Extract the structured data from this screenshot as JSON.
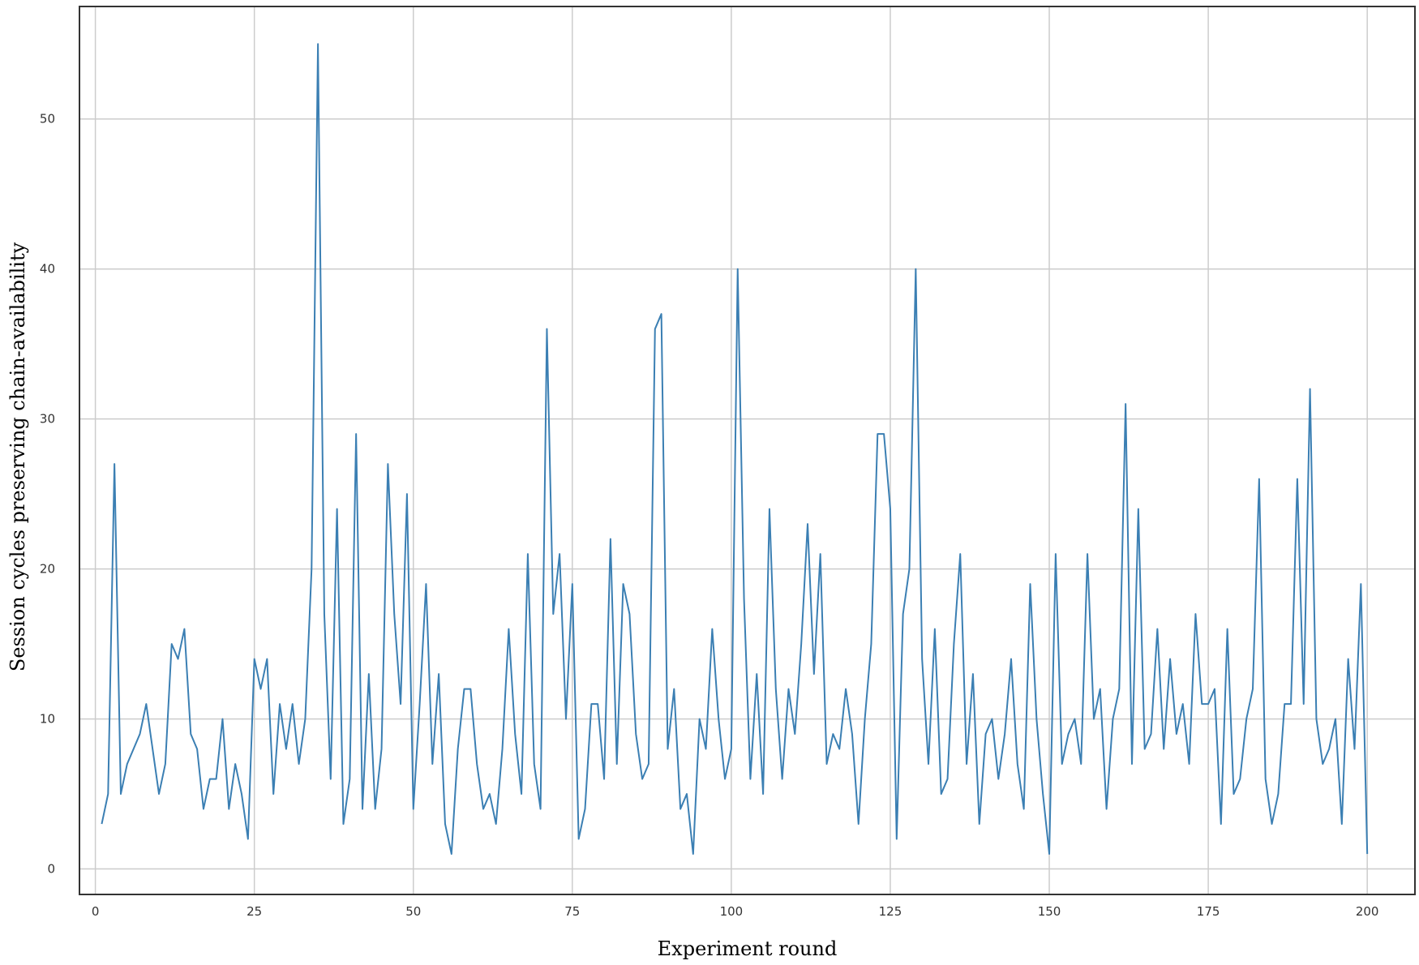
{
  "chart_data": {
    "type": "line",
    "title": "",
    "xlabel": "Experiment round",
    "ylabel": "Session cycles preserving chain-availability",
    "xlim": [
      -2.5,
      207.5
    ],
    "ylim": [
      -1.7,
      57.5
    ],
    "xticks": [
      0,
      25,
      50,
      75,
      100,
      125,
      150,
      175,
      200
    ],
    "yticks": [
      0,
      10,
      20,
      30,
      40,
      50
    ],
    "grid": true,
    "legend": "none",
    "colors": {
      "line": "#3b7fb3",
      "grid": "#cccccc",
      "frame": "#333333"
    },
    "series": [
      {
        "x_start": 1,
        "x_step": 1,
        "values": [
          3,
          5,
          27,
          5,
          7,
          8,
          9,
          11,
          8,
          5,
          7,
          15,
          14,
          16,
          9,
          8,
          4,
          6,
          6,
          10,
          4,
          7,
          5,
          2,
          14,
          12,
          14,
          5,
          11,
          8,
          11,
          7,
          10,
          20,
          55,
          17,
          6,
          24,
          3,
          6,
          29,
          4,
          13,
          4,
          8,
          27,
          17,
          11,
          25,
          4,
          11,
          19,
          7,
          13,
          3,
          1,
          8,
          12,
          12,
          7,
          4,
          5,
          3,
          8,
          16,
          9,
          5,
          21,
          7,
          4,
          36,
          17,
          21,
          10,
          19,
          2,
          4,
          11,
          11,
          6,
          22,
          7,
          19,
          17,
          9,
          6,
          7,
          36,
          37,
          8,
          12,
          4,
          5,
          1,
          10,
          8,
          16,
          10,
          6,
          8,
          40,
          18,
          6,
          13,
          5,
          24,
          12,
          6,
          12,
          9,
          15,
          23,
          13,
          21,
          7,
          9,
          8,
          12,
          9,
          3,
          10,
          15,
          29,
          29,
          24,
          2,
          17,
          20,
          40,
          14,
          7,
          16,
          5,
          6,
          15,
          21,
          7,
          13,
          3,
          9,
          10,
          6,
          9,
          14,
          7,
          4,
          19,
          10,
          5,
          1,
          21,
          7,
          9,
          10,
          7,
          21,
          10,
          12,
          4,
          10,
          12,
          31,
          7,
          24,
          8,
          9,
          16,
          8,
          14,
          9,
          11,
          7,
          17,
          11,
          11,
          12,
          3,
          16,
          5,
          6,
          10,
          12,
          26,
          6,
          3,
          5,
          11,
          11,
          26,
          11,
          32,
          10,
          7,
          8,
          10,
          3,
          14,
          8,
          19,
          1
        ]
      }
    ]
  }
}
